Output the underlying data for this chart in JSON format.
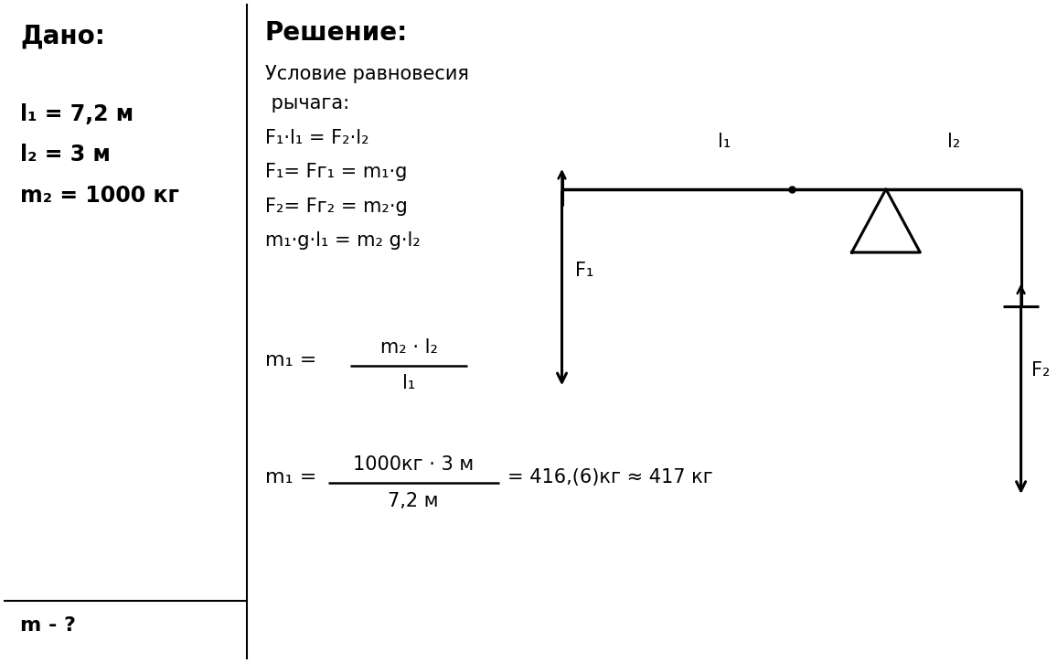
{
  "bg_color": "#ffffff",
  "dado_title": "Дано:",
  "dado_lines": [
    "l₁ = 7,2 м",
    "l₂ = 3 м",
    "m₂ = 1000 кг"
  ],
  "question_line": "m - ?",
  "reshenie_title": "Решение:",
  "cond1": "Условие равновесия",
  "cond2": " рычага:",
  "eq1": "F₁·l₁ = F₂·l₂",
  "eq2": "F₁= Fг₁ = m₁·g",
  "eq3": "F₂= Fг₂ = m₂·g",
  "eq4": "m₁·g·l₁ = m₂ g·l₂",
  "formula_lhs": "m₁ =",
  "formula_num": "m₂ · l₂",
  "formula_den": "l₁",
  "calc_lhs": "m₁ =",
  "calc_num": "1000кг · 3 м",
  "calc_den": "7,2 м",
  "calc_rhs": "= 416,(6)кг ≈ 417 кг"
}
